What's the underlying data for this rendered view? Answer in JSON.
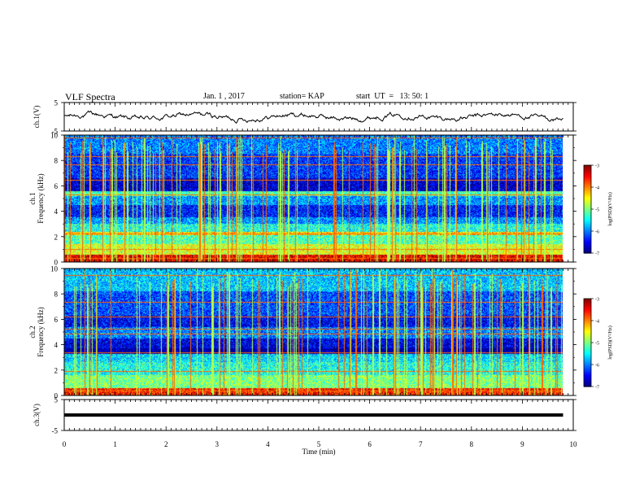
{
  "header": {
    "title": "VLF Spectra",
    "date": "Jan. 1 , 2017",
    "station": "station= KAP",
    "start_ut": "start  UT  =   13: 50: 1"
  },
  "chart_data": {
    "type": "heatmap",
    "xlabel": "Time  (min)",
    "xlim": [
      0,
      10
    ],
    "xticks": [
      0,
      1,
      2,
      3,
      4,
      5,
      6,
      7,
      8,
      9,
      10
    ],
    "panels": [
      {
        "id": "ch1_voltage",
        "type": "line",
        "ylabel": "ch.1(V)",
        "ylim": [
          -5,
          5
        ],
        "yticks": [
          -5,
          5
        ],
        "x_extent": [
          0,
          9.8
        ],
        "baseline": 0,
        "amplitude": 1.2
      },
      {
        "id": "ch1_spectrogram",
        "type": "heatmap",
        "ylabel": "ch.1\nFrequency (kHz)",
        "ylim": [
          0,
          10
        ],
        "yticks": [
          0,
          2,
          4,
          6,
          8,
          10
        ],
        "x_extent": [
          0,
          9.8
        ],
        "bands_khz": [
          {
            "lo": 0.0,
            "hi": 0.6,
            "level": -3.4
          },
          {
            "lo": 0.6,
            "hi": 1.4,
            "level": -4.6
          },
          {
            "lo": 1.4,
            "hi": 2.1,
            "level": -5.2
          },
          {
            "lo": 2.1,
            "hi": 2.4,
            "level": -4.3
          },
          {
            "lo": 2.4,
            "hi": 3.0,
            "level": -5.4
          },
          {
            "lo": 3.0,
            "hi": 3.5,
            "level": -5.9
          },
          {
            "lo": 3.5,
            "hi": 4.5,
            "level": -6.4
          },
          {
            "lo": 4.5,
            "hi": 5.2,
            "level": -5.9
          },
          {
            "lo": 5.2,
            "hi": 5.6,
            "level": -5.2
          },
          {
            "lo": 5.6,
            "hi": 6.6,
            "level": -6.7
          },
          {
            "lo": 6.6,
            "hi": 8.5,
            "level": -6.3
          },
          {
            "lo": 8.5,
            "hi": 10.0,
            "level": -6.0
          }
        ],
        "lines_khz": [
          0.35,
          1.05,
          2.25,
          5.3,
          6.45,
          7.7,
          8.35,
          9.8
        ]
      },
      {
        "id": "ch2_spectrogram",
        "type": "heatmap",
        "ylabel": "ch.2\nFrequency (kHz)",
        "ylim": [
          0,
          10
        ],
        "yticks": [
          0,
          2,
          4,
          6,
          8,
          10
        ],
        "x_extent": [
          0,
          9.8
        ],
        "bands_khz": [
          {
            "lo": 0.0,
            "hi": 0.6,
            "level": -3.6
          },
          {
            "lo": 0.6,
            "hi": 1.6,
            "level": -5.0
          },
          {
            "lo": 1.6,
            "hi": 2.6,
            "level": -5.4
          },
          {
            "lo": 2.6,
            "hi": 3.3,
            "level": -5.6
          },
          {
            "lo": 3.3,
            "hi": 3.7,
            "level": -6.9
          },
          {
            "lo": 3.7,
            "hi": 4.5,
            "level": -6.6
          },
          {
            "lo": 4.5,
            "hi": 5.4,
            "level": -6.0
          },
          {
            "lo": 5.4,
            "hi": 6.3,
            "level": -6.5
          },
          {
            "lo": 6.3,
            "hi": 8.2,
            "level": -6.2
          },
          {
            "lo": 8.2,
            "hi": 10.0,
            "level": -5.7
          }
        ],
        "lines_khz": [
          0.4,
          1.9,
          3.4,
          4.9,
          5.25,
          6.25,
          7.35,
          9.5
        ]
      },
      {
        "id": "ch3_voltage",
        "type": "line",
        "ylabel": "ch.3(V)",
        "ylim": [
          -5,
          5
        ],
        "yticks": [
          -5,
          5
        ],
        "x_extent": [
          0,
          9.8
        ],
        "baseline": 0,
        "amplitude": 0
      }
    ],
    "colorbar": {
      "label": "log(PSD)(V²/Hz)",
      "range": [
        -7,
        -3
      ],
      "ticks": [
        -3,
        -4,
        -5,
        -6,
        -7
      ]
    },
    "grid": false
  }
}
